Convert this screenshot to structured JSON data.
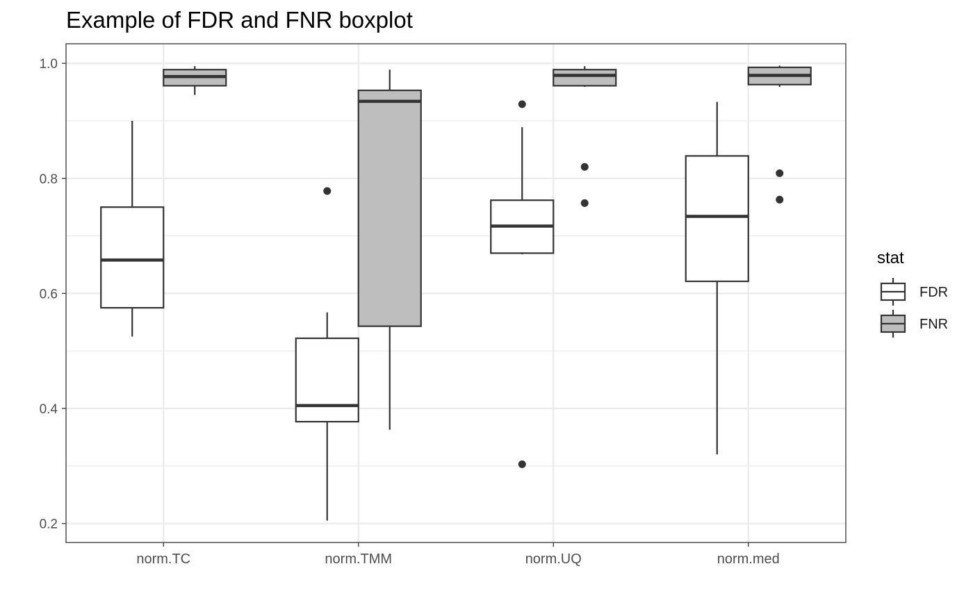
{
  "chart_data": {
    "type": "boxplot",
    "title": "Example of FDR and FNR boxplot",
    "xlabel": "",
    "ylabel": "",
    "categories": [
      "norm.TC",
      "norm.TMM",
      "norm.UQ",
      "norm.med"
    ],
    "ylim": [
      0.167,
      1.034
    ],
    "yticks": [
      0.2,
      0.4,
      0.6,
      0.8,
      1.0
    ],
    "ytick_labels": [
      "0.2",
      "0.4",
      "0.6",
      "0.8",
      "1.0"
    ],
    "grid": true,
    "legend": {
      "title": "stat",
      "position": "right",
      "entries": [
        {
          "label": "FDR",
          "fill": "#ffffff"
        },
        {
          "label": "FNR",
          "fill": "#bebebe"
        }
      ]
    },
    "series": [
      {
        "name": "FDR",
        "fill": "#ffffff",
        "boxes": [
          {
            "category": "norm.TC",
            "whisker_low": 0.525,
            "q1": 0.575,
            "median": 0.658,
            "q3": 0.75,
            "whisker_high": 0.9,
            "outliers": []
          },
          {
            "category": "norm.TMM",
            "whisker_low": 0.205,
            "q1": 0.377,
            "median": 0.405,
            "q3": 0.522,
            "whisker_high": 0.567,
            "outliers": [
              0.778
            ]
          },
          {
            "category": "norm.UQ",
            "whisker_low": 0.668,
            "q1": 0.67,
            "median": 0.717,
            "q3": 0.762,
            "whisker_high": 0.889,
            "outliers": [
              0.929,
              0.303
            ]
          },
          {
            "category": "norm.med",
            "whisker_low": 0.32,
            "q1": 0.621,
            "median": 0.734,
            "q3": 0.839,
            "whisker_high": 0.933,
            "outliers": []
          }
        ]
      },
      {
        "name": "FNR",
        "fill": "#bebebe",
        "boxes": [
          {
            "category": "norm.TC",
            "whisker_low": 0.945,
            "q1": 0.961,
            "median": 0.977,
            "q3": 0.989,
            "whisker_high": 0.995,
            "outliers": []
          },
          {
            "category": "norm.TMM",
            "whisker_low": 0.363,
            "q1": 0.543,
            "median": 0.934,
            "q3": 0.953,
            "whisker_high": 0.989,
            "outliers": []
          },
          {
            "category": "norm.UQ",
            "whisker_low": 0.959,
            "q1": 0.961,
            "median": 0.979,
            "q3": 0.989,
            "whisker_high": 0.995,
            "outliers": [
              0.82,
              0.757
            ]
          },
          {
            "category": "norm.med",
            "whisker_low": 0.959,
            "q1": 0.963,
            "median": 0.979,
            "q3": 0.993,
            "whisker_high": 0.996,
            "outliers": [
              0.809,
              0.763
            ]
          }
        ]
      }
    ]
  }
}
